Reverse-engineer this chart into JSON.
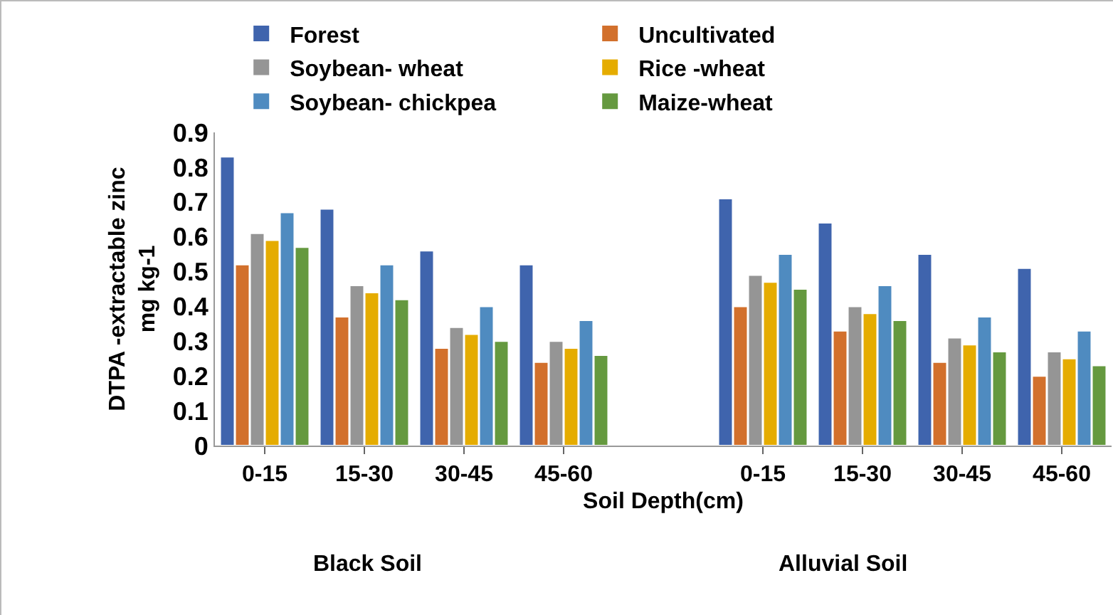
{
  "chart_data": {
    "type": "bar",
    "xlabel": "Soil Depth(cm)",
    "ylabel": "DTPA -extractable zinc mg kg-1",
    "categories": [
      "0-15",
      "15-30",
      "30-45",
      "45-60",
      null,
      "0-15",
      "15-30",
      "30-45",
      "45-60"
    ],
    "series": [
      {
        "name": "Forest",
        "color": "#3f64ad",
        "values": [
          0.83,
          0.68,
          0.56,
          0.52,
          null,
          0.71,
          0.64,
          0.55,
          0.51
        ]
      },
      {
        "name": "Uncultivated",
        "color": "#d2702c",
        "values": [
          0.52,
          0.37,
          0.28,
          0.24,
          null,
          0.4,
          0.33,
          0.24,
          0.2
        ]
      },
      {
        "name": "Soybean- wheat",
        "color": "#959595",
        "values": [
          0.61,
          0.46,
          0.34,
          0.3,
          null,
          0.49,
          0.4,
          0.31,
          0.27
        ]
      },
      {
        "name": "Rice -wheat",
        "color": "#e5ac00",
        "values": [
          0.59,
          0.44,
          0.32,
          0.28,
          null,
          0.47,
          0.38,
          0.29,
          0.25
        ]
      },
      {
        "name": "Soybean- chickpea",
        "color": "#4f8bc0",
        "values": [
          0.67,
          0.52,
          0.4,
          0.36,
          null,
          0.55,
          0.46,
          0.37,
          0.33
        ]
      },
      {
        "name": "Maize-wheat",
        "color": "#65993f",
        "values": [
          0.57,
          0.42,
          0.3,
          0.26,
          null,
          0.45,
          0.36,
          0.27,
          0.23
        ]
      }
    ],
    "annotations": [
      "Black Soil",
      "Alluvial Soil"
    ],
    "ylim": [
      0,
      0.9
    ],
    "yticks": [
      0,
      0.1,
      0.2,
      0.3,
      0.4,
      0.5,
      0.6,
      0.7,
      0.8,
      0.9
    ],
    "grid": false,
    "legend": "top"
  }
}
